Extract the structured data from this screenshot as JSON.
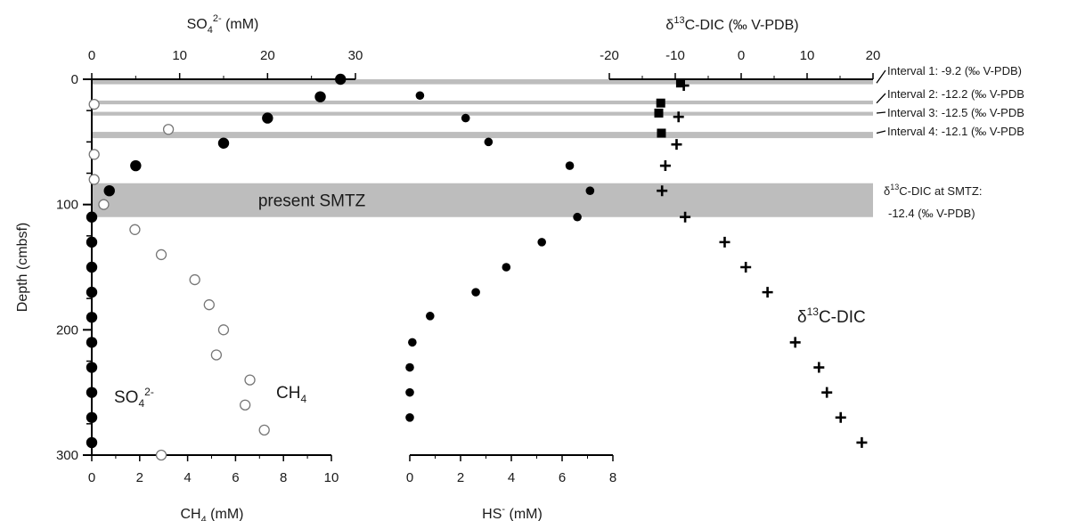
{
  "chart_data": {
    "type": "scatter",
    "depth_axis": {
      "label": "Depth (cmbsf)",
      "range": [
        0,
        300
      ],
      "ticks": [
        "0",
        "100",
        "200",
        "300"
      ]
    },
    "axes": {
      "so4": {
        "label_main": "SO",
        "label_sub": "4",
        "label_sup": "2-",
        "label_unit": " (mM)",
        "range": [
          0,
          30
        ],
        "ticks": [
          "0",
          "10",
          "20",
          "30"
        ]
      },
      "ch4": {
        "label_main": "CH",
        "label_sub": "4",
        "label_unit": " (mM)",
        "range": [
          0,
          10
        ],
        "ticks": [
          "0",
          "2",
          "4",
          "6",
          "8",
          "10"
        ]
      },
      "hs": {
        "label_main": "HS",
        "label_sup": "-",
        "label_unit": " (mM)",
        "range": [
          0,
          8
        ],
        "ticks": [
          "0",
          "2",
          "4",
          "6",
          "8"
        ]
      },
      "dic": {
        "label_pre": "δ",
        "label_sup": "13",
        "label_main": "C-DIC (‰ V-PDB)",
        "range": [
          -20,
          20
        ],
        "ticks": [
          "-20",
          "-10",
          "0",
          "10",
          "20"
        ]
      }
    },
    "bands": [
      {
        "depth": [
          0,
          4
        ]
      },
      {
        "depth": [
          17,
          20
        ]
      },
      {
        "depth": [
          26,
          29
        ]
      },
      {
        "depth": [
          42,
          47
        ]
      },
      {
        "depth": [
          83,
          110
        ],
        "label": "present SMTZ"
      }
    ],
    "series": [
      {
        "key": "so4",
        "name_main": "SO",
        "name_sub": "4",
        "name_sup": "2-",
        "axis": "so4",
        "marker": "filled-circle-large",
        "points": [
          [
            28.3,
            0
          ],
          [
            26,
            14
          ],
          [
            20,
            31
          ],
          [
            15,
            51
          ],
          [
            5,
            69
          ],
          [
            2,
            89
          ],
          [
            0,
            110
          ],
          [
            0,
            130
          ],
          [
            0,
            150
          ],
          [
            0,
            170
          ],
          [
            0,
            190
          ],
          [
            0,
            210
          ],
          [
            0,
            230
          ],
          [
            0,
            250
          ],
          [
            0,
            270
          ],
          [
            0,
            290
          ]
        ]
      },
      {
        "key": "ch4",
        "name_main": "CH",
        "name_sub": "4",
        "axis": "ch4",
        "marker": "open-circle",
        "points": [
          [
            0.1,
            20
          ],
          [
            3.2,
            40
          ],
          [
            0.1,
            60
          ],
          [
            0.1,
            80
          ],
          [
            0.5,
            100
          ],
          [
            1.8,
            120
          ],
          [
            2.9,
            140
          ],
          [
            4.3,
            160
          ],
          [
            4.9,
            180
          ],
          [
            5.5,
            200
          ],
          [
            5.2,
            220
          ],
          [
            6.6,
            240
          ],
          [
            6.4,
            260
          ],
          [
            7.2,
            280
          ],
          [
            2.9,
            300
          ]
        ]
      },
      {
        "key": "hs",
        "axis": "hs",
        "marker": "filled-circle-small",
        "points": [
          [
            0.4,
            13
          ],
          [
            2.2,
            31
          ],
          [
            3.1,
            50
          ],
          [
            6.3,
            69
          ],
          [
            7.1,
            89
          ],
          [
            6.6,
            110
          ],
          [
            5.2,
            130
          ],
          [
            3.8,
            150
          ],
          [
            2.6,
            170
          ],
          [
            0.8,
            189
          ],
          [
            0.1,
            210
          ],
          [
            0,
            230
          ],
          [
            0,
            250
          ],
          [
            0,
            270
          ]
        ]
      },
      {
        "key": "dic",
        "name_pre": "δ",
        "name_sup": "13",
        "name_main": "C-DIC",
        "axis": "dic",
        "marker": "plus",
        "points": [
          [
            -8.7,
            5
          ],
          [
            -9.5,
            30
          ],
          [
            -9.8,
            52
          ],
          [
            -11.5,
            69
          ],
          [
            -12,
            89
          ],
          [
            -8.5,
            110
          ],
          [
            -2.5,
            130
          ],
          [
            0.7,
            150
          ],
          [
            4,
            170
          ],
          [
            8.2,
            210
          ],
          [
            11.8,
            230
          ],
          [
            13,
            250
          ],
          [
            15.1,
            270
          ],
          [
            18.3,
            290
          ]
        ]
      },
      {
        "key": "dic_interval",
        "axis": "dic",
        "marker": "filled-square",
        "points": [
          [
            -9.2,
            3
          ],
          [
            -12.2,
            19
          ],
          [
            -12.5,
            27
          ],
          [
            -12.1,
            43
          ]
        ]
      }
    ],
    "annotations": [
      {
        "text": "Interval 1: -9.2 (‰ V-PDB)"
      },
      {
        "text": "Interval 2: -12.2 (‰ V-PDB"
      },
      {
        "text": "Interval 3: -12.5 (‰ V-PDB"
      },
      {
        "text": "Interval 4: -12.1 (‰ V-PDB"
      }
    ],
    "smtz_note": {
      "pre": "δ",
      "sup": "13",
      "line1_rest": "C-DIC at SMTZ:",
      "line2": "-12.4 (‰ V-PDB)"
    }
  }
}
